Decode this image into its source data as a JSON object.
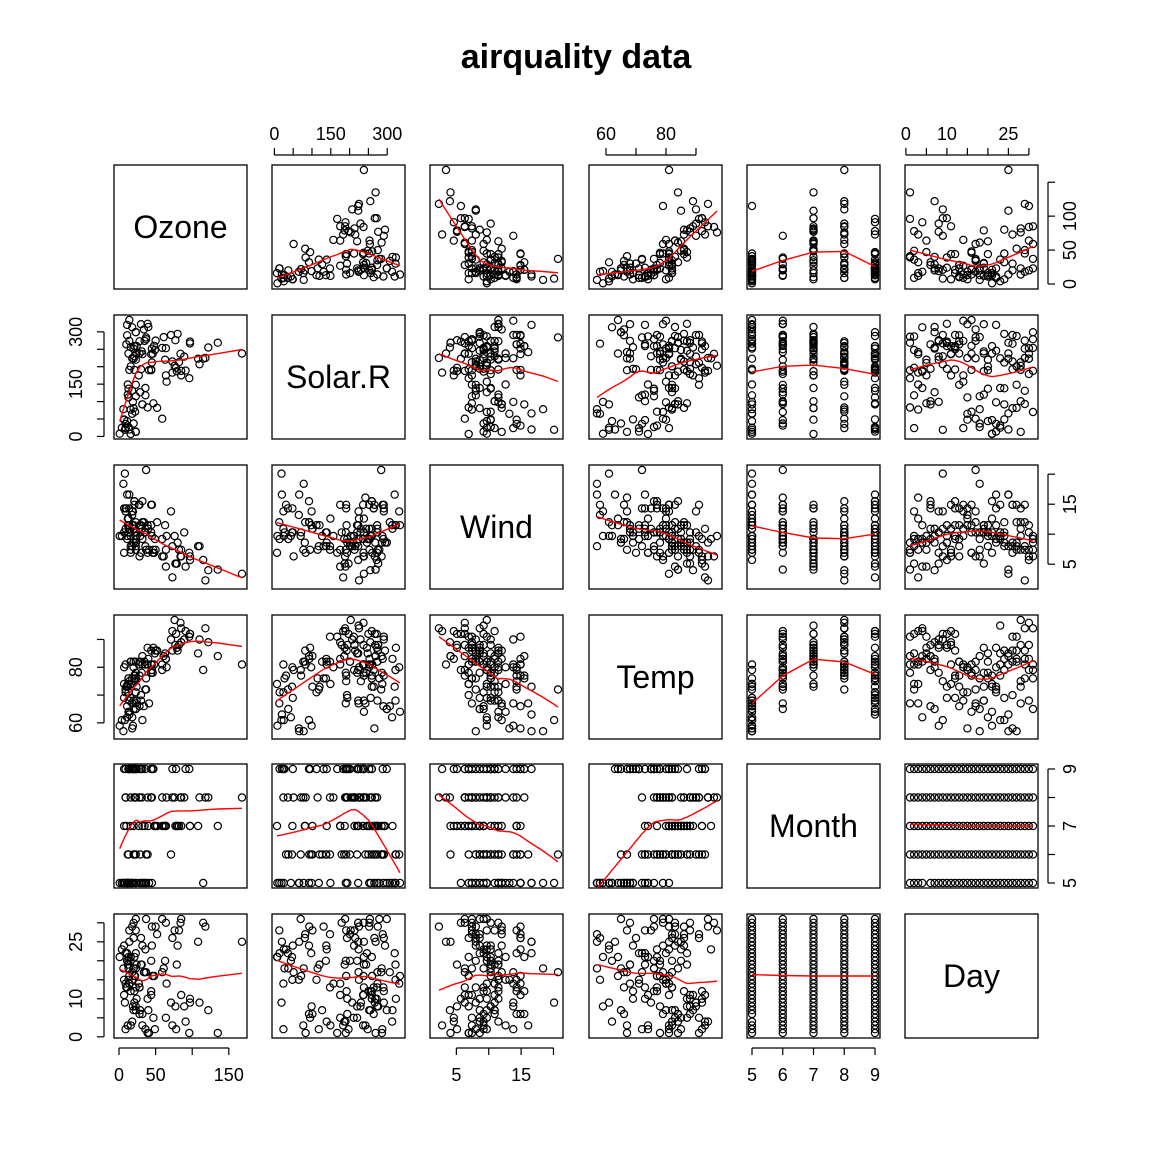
{
  "title": "airquality data",
  "colors": {
    "points": "#000000",
    "smooth": "#ff0000",
    "background": "#ffffff"
  },
  "chart_data": {
    "type": "scatter",
    "subtype": "scatterplot-matrix",
    "title": "airquality data",
    "variables": [
      "Ozone",
      "Solar.R",
      "Wind",
      "Temp",
      "Month",
      "Day"
    ],
    "lower_panel_smoother": true,
    "upper_panel_smoother": true,
    "axes": {
      "Ozone": {
        "range": [
          0,
          168
        ],
        "ticks": [
          0,
          50,
          100,
          150
        ],
        "tick_labels": [
          "0",
          "50",
          "",
          "150"
        ],
        "right_labels": [
          "0",
          "50",
          "100",
          ""
        ]
      },
      "Solar.R": {
        "range": [
          7,
          334
        ],
        "ticks": [
          0,
          50,
          100,
          150,
          200,
          250,
          300
        ],
        "tick_labels": [
          "0",
          "",
          "",
          "150",
          "",
          "",
          "300"
        ]
      },
      "Wind": {
        "range": [
          1.7,
          20.7
        ],
        "ticks": [
          5,
          10,
          15,
          20
        ],
        "tick_labels": [
          "5",
          "",
          "15",
          ""
        ],
        "right_labels": [
          "5",
          "",
          "15"
        ]
      },
      "Temp": {
        "range": [
          56,
          97
        ],
        "ticks": [
          60,
          70,
          80,
          90
        ],
        "tick_labels": [
          "60",
          "",
          "80",
          ""
        ]
      },
      "Month": {
        "range": [
          5,
          9
        ],
        "ticks": [
          5,
          6,
          7,
          8,
          9
        ],
        "tick_labels": [
          "5",
          "6",
          "7",
          "8",
          "9"
        ],
        "right_labels": [
          "5",
          "",
          "7",
          "",
          "9"
        ]
      },
      "Day": {
        "range": [
          1,
          31
        ],
        "ticks": [
          0,
          5,
          10,
          15,
          20,
          25,
          30
        ],
        "tick_labels": [
          "0",
          "",
          "10",
          "",
          "",
          "25",
          ""
        ],
        "left_labels": [
          "0",
          "",
          "10",
          "",
          "",
          "25",
          ""
        ]
      }
    },
    "points": [
      [
        41,
        190,
        7.4,
        67,
        5,
        1
      ],
      [
        36,
        118,
        8,
        72,
        5,
        2
      ],
      [
        12,
        149,
        12.6,
        74,
        5,
        3
      ],
      [
        18,
        313,
        11.5,
        62,
        5,
        4
      ],
      [
        28,
        null,
        14.9,
        66,
        5,
        6
      ],
      [
        23,
        299,
        8.6,
        65,
        5,
        7
      ],
      [
        19,
        99,
        13.8,
        59,
        5,
        8
      ],
      [
        8,
        19,
        20.1,
        61,
        5,
        9
      ],
      [
        7,
        null,
        6.9,
        74,
        5,
        11
      ],
      [
        16,
        256,
        9.7,
        69,
        5,
        12
      ],
      [
        11,
        290,
        9.2,
        66,
        5,
        13
      ],
      [
        14,
        274,
        10.9,
        68,
        5,
        14
      ],
      [
        18,
        65,
        13.2,
        58,
        5,
        15
      ],
      [
        14,
        334,
        11.5,
        64,
        5,
        16
      ],
      [
        34,
        307,
        12,
        66,
        5,
        17
      ],
      [
        6,
        78,
        18.4,
        57,
        5,
        18
      ],
      [
        30,
        322,
        11.5,
        68,
        5,
        19
      ],
      [
        11,
        44,
        9.7,
        62,
        5,
        20
      ],
      [
        1,
        8,
        9.7,
        59,
        5,
        21
      ],
      [
        11,
        320,
        16.6,
        73,
        5,
        22
      ],
      [
        4,
        25,
        9.7,
        61,
        5,
        23
      ],
      [
        32,
        92,
        12,
        61,
        5,
        24
      ],
      [
        23,
        13,
        12,
        67,
        5,
        28
      ],
      [
        45,
        252,
        14.9,
        81,
        5,
        29
      ],
      [
        115,
        223,
        5.7,
        79,
        5,
        30
      ],
      [
        37,
        279,
        7.4,
        76,
        5,
        31
      ],
      [
        29,
        127,
        9.7,
        82,
        6,
        7
      ],
      [
        71,
        291,
        13.8,
        90,
        6,
        9
      ],
      [
        39,
        323,
        11.5,
        87,
        6,
        10
      ],
      [
        23,
        148,
        8,
        82,
        6,
        13
      ],
      [
        21,
        191,
        14.9,
        77,
        6,
        16
      ],
      [
        37,
        284,
        20.7,
        72,
        6,
        17
      ],
      [
        20,
        37,
        9.2,
        65,
        6,
        18
      ],
      [
        12,
        120,
        11.5,
        73,
        6,
        19
      ],
      [
        13,
        137,
        10.3,
        76,
        6,
        20
      ],
      [
        135,
        269,
        4.1,
        84,
        7,
        1
      ],
      [
        49,
        248,
        9.2,
        85,
        7,
        2
      ],
      [
        32,
        236,
        9.2,
        81,
        7,
        3
      ],
      [
        64,
        175,
        4.6,
        83,
        7,
        5
      ],
      [
        40,
        314,
        10.9,
        83,
        7,
        7
      ],
      [
        77,
        276,
        5.1,
        88,
        7,
        8
      ],
      [
        97,
        267,
        6.3,
        92,
        7,
        9
      ],
      [
        97,
        272,
        5.7,
        92,
        7,
        10
      ],
      [
        85,
        175,
        7.4,
        89,
        7,
        11
      ],
      [
        10,
        264,
        14.3,
        73,
        7,
        13
      ],
      [
        27,
        175,
        14.9,
        81,
        7,
        14
      ],
      [
        7,
        48,
        14.3,
        80,
        7,
        15
      ],
      [
        48,
        260,
        6.9,
        81,
        7,
        16
      ],
      [
        35,
        274,
        10.3,
        82,
        7,
        17
      ],
      [
        61,
        285,
        6.3,
        84,
        7,
        18
      ],
      [
        79,
        187,
        5.1,
        87,
        7,
        19
      ],
      [
        63,
        220,
        11.5,
        85,
        7,
        20
      ],
      [
        16,
        7,
        6.9,
        74,
        7,
        21
      ],
      [
        80,
        294,
        8.6,
        86,
        7,
        24
      ],
      [
        108,
        223,
        8,
        85,
        7,
        25
      ],
      [
        20,
        81,
        8.6,
        82,
        7,
        26
      ],
      [
        52,
        82,
        12,
        86,
        7,
        27
      ],
      [
        82,
        213,
        7.4,
        88,
        7,
        28
      ],
      [
        50,
        275,
        7.4,
        86,
        7,
        29
      ],
      [
        64,
        253,
        7.4,
        83,
        7,
        30
      ],
      [
        59,
        254,
        9.2,
        81,
        7,
        31
      ],
      [
        39,
        83,
        6.9,
        81,
        8,
        1
      ],
      [
        9,
        24,
        13.8,
        81,
        8,
        2
      ],
      [
        16,
        77,
        7.4,
        82,
        8,
        3
      ],
      [
        122,
        255,
        4,
        89,
        8,
        7
      ],
      [
        89,
        229,
        10.3,
        90,
        8,
        8
      ],
      [
        110,
        207,
        8,
        90,
        8,
        9
      ],
      [
        44,
        192,
        11.5,
        86,
        8,
        12
      ],
      [
        28,
        273,
        11.5,
        82,
        8,
        13
      ],
      [
        65,
        157,
        9.7,
        80,
        8,
        14
      ],
      [
        22,
        71,
        10.3,
        77,
        8,
        16
      ],
      [
        59,
        51,
        6.3,
        79,
        8,
        17
      ],
      [
        23,
        115,
        7.4,
        76,
        8,
        18
      ],
      [
        31,
        244,
        10.9,
        78,
        8,
        19
      ],
      [
        44,
        190,
        10.3,
        78,
        8,
        20
      ],
      [
        21,
        259,
        15.5,
        77,
        8,
        21
      ],
      [
        9,
        36,
        14.3,
        72,
        8,
        22
      ],
      [
        45,
        212,
        9.7,
        79,
        8,
        24
      ],
      [
        168,
        238,
        3.4,
        81,
        8,
        25
      ],
      [
        73,
        215,
        8,
        86,
        8,
        26
      ],
      [
        76,
        203,
        9.7,
        97,
        8,
        28
      ],
      [
        118,
        225,
        2.3,
        94,
        8,
        29
      ],
      [
        84,
        237,
        6.3,
        96,
        8,
        30
      ],
      [
        85,
        188,
        6.3,
        94,
        8,
        31
      ],
      [
        96,
        167,
        6.9,
        91,
        9,
        1
      ],
      [
        78,
        197,
        5.1,
        92,
        9,
        2
      ],
      [
        73,
        183,
        2.8,
        93,
        9,
        3
      ],
      [
        91,
        189,
        4.6,
        93,
        9,
        4
      ],
      [
        47,
        95,
        7.4,
        87,
        9,
        5
      ],
      [
        32,
        92,
        15.5,
        84,
        9,
        6
      ],
      [
        20,
        252,
        10.9,
        80,
        9,
        7
      ],
      [
        23,
        220,
        10.3,
        78,
        9,
        8
      ],
      [
        21,
        230,
        10.9,
        75,
        9,
        9
      ],
      [
        24,
        259,
        9.7,
        73,
        9,
        10
      ],
      [
        44,
        236,
        14.9,
        81,
        9,
        11
      ],
      [
        21,
        259,
        15.5,
        76,
        9,
        12
      ],
      [
        28,
        238,
        6.3,
        77,
        9,
        13
      ],
      [
        9,
        24,
        10.9,
        71,
        9,
        14
      ],
      [
        13,
        112,
        11.5,
        71,
        9,
        15
      ],
      [
        46,
        237,
        6.9,
        78,
        9,
        16
      ],
      [
        18,
        224,
        13.8,
        67,
        9,
        17
      ],
      [
        13,
        27,
        10.3,
        76,
        9,
        18
      ],
      [
        24,
        238,
        10.3,
        68,
        9,
        19
      ],
      [
        16,
        201,
        8,
        82,
        9,
        20
      ],
      [
        13,
        238,
        12.6,
        64,
        9,
        21
      ],
      [
        23,
        14,
        9.2,
        71,
        9,
        22
      ],
      [
        36,
        139,
        10.3,
        81,
        9,
        23
      ],
      [
        7,
        49,
        10.3,
        69,
        9,
        24
      ],
      [
        14,
        20,
        16.6,
        63,
        9,
        25
      ],
      [
        30,
        193,
        6.9,
        70,
        9,
        26
      ],
      [
        14,
        191,
        14.3,
        75,
        9,
        28
      ],
      [
        18,
        131,
        8,
        76,
        9,
        29
      ],
      [
        20,
        223,
        11.5,
        68,
        9,
        30
      ],
      [
        null,
        194,
        8.6,
        69,
        5,
        10
      ],
      [
        null,
        66,
        16.6,
        57,
        5,
        25
      ],
      [
        null,
        266,
        14.9,
        58,
        5,
        26
      ],
      [
        null,
        null,
        8,
        57,
        5,
        27
      ],
      [
        null,
        286,
        8.6,
        78,
        6,
        1
      ],
      [
        null,
        287,
        9.7,
        74,
        6,
        2
      ],
      [
        null,
        242,
        16.1,
        67,
        6,
        3
      ],
      [
        null,
        186,
        9.2,
        84,
        6,
        4
      ],
      [
        null,
        220,
        8.6,
        85,
        6,
        5
      ],
      [
        null,
        264,
        14.3,
        79,
        6,
        6
      ],
      [
        null,
        273,
        6.9,
        87,
        6,
        8
      ],
      [
        null,
        259,
        10.9,
        93,
        6,
        11
      ],
      [
        null,
        250,
        9.2,
        92,
        6,
        12
      ],
      [
        null,
        332,
        13.8,
        80,
        6,
        14
      ],
      [
        null,
        322,
        11.5,
        79,
        6,
        15
      ],
      [
        null,
        47,
        10.3,
        73,
        6,
        21
      ],
      [
        null,
        98,
        11.5,
        80,
        6,
        22
      ],
      [
        null,
        31,
        14.9,
        77,
        6,
        23
      ],
      [
        null,
        138,
        8,
        83,
        6,
        24
      ],
      [
        null,
        269,
        4.1,
        84,
        6,
        25
      ],
      [
        null,
        291,
        14.9,
        91,
        6,
        26
      ],
      [
        null,
        201,
        8.6,
        82,
        6,
        27
      ],
      [
        null,
        101,
        10.9,
        73,
        6,
        28
      ],
      [
        null,
        93,
        12,
        83,
        6,
        29
      ],
      [
        null,
        179,
        10.3,
        88,
        6,
        30
      ],
      [
        null,
        70,
        9.7,
        79,
        6,
        31
      ],
      [
        null,
        139,
        8.6,
        82,
        7,
        4
      ],
      [
        null,
        101,
        10.9,
        84,
        7,
        6
      ],
      [
        null,
        291,
        14.3,
        77,
        7,
        12
      ],
      [
        null,
        246,
        8.6,
        87,
        7,
        22
      ],
      [
        null,
        224,
        9.2,
        95,
        7,
        23
      ],
      [
        null,
        null,
        8.6,
        94,
        8,
        4
      ],
      [
        null,
        211,
        9.7,
        91,
        8,
        5
      ],
      [
        null,
        194,
        9.2,
        88,
        8,
        6
      ],
      [
        null,
        268,
        8.6,
        88,
        8,
        10
      ],
      [
        null,
        237,
        6.3,
        88,
        8,
        11
      ],
      [
        null,
        225,
        12.6,
        80,
        8,
        15
      ],
      [
        null,
        null,
        10.3,
        85,
        8,
        23
      ],
      [
        null,
        148,
        7.4,
        91,
        8,
        27
      ],
      [
        null,
        288,
        14.9,
        83,
        9,
        27
      ],
      [
        23,
        299,
        8.6,
        65,
        9,
        31
      ]
    ]
  }
}
